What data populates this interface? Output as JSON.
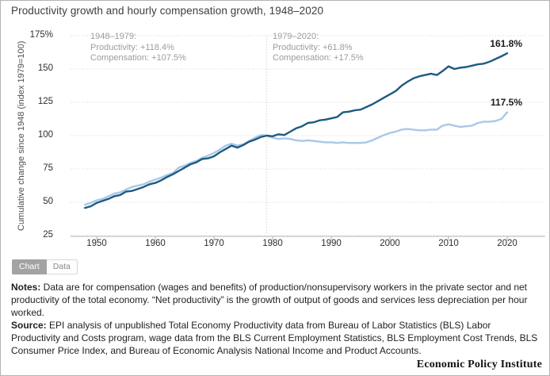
{
  "title": "Productivity growth and hourly compensation growth, 1948–2020",
  "annotations": {
    "period1": {
      "heading": "1948–1979:",
      "line1": "Productivity: +118.4%",
      "line2": "Compensation: +107.5%"
    },
    "period2": {
      "heading": "1979–2020:",
      "line1": "Productivity: +61.8%",
      "line2": "Compensation: +17.5%"
    }
  },
  "end_labels": {
    "productivity": "161.8%",
    "compensation": "117.5%"
  },
  "toggle": {
    "chart_label": "Chart",
    "data_label": "Data"
  },
  "notes": {
    "label": "Notes:",
    "text": " Data are for compensation (wages and benefits) of production/nonsupervisory workers in the private sector and net productivity of the total economy. “Net productivity” is the growth of output of goods and services less depreciation per hour worked."
  },
  "source": {
    "label": "Source:",
    "text": " EPI analysis of unpublished Total Economy Productivity data from Bureau of Labor Statistics (BLS) Labor Productivity and Costs program, wage data from the BLS Current Employment Statistics, BLS Employment Cost Trends, BLS Consumer Price Index, and Bureau of Economic Analysis National Income and Product Accounts."
  },
  "footer_brand": "Economic Policy Institute",
  "colors": {
    "productivity_line": "#1d5b7f",
    "compensation_line": "#a8c8e8",
    "grid": "#d2d2d2",
    "axis": "#b5b5b5",
    "reference_line": "#c4c4c4"
  },
  "chart_data": {
    "type": "line",
    "title": "Productivity growth and hourly compensation growth, 1948–2020",
    "xlabel": "",
    "ylabel": "Cumulative change since 1948 (index 1979=100)",
    "ylim": [
      25,
      175
    ],
    "grid": true,
    "legend_position": "none",
    "reference_line_x": 1979,
    "y_ticks": [
      175,
      150,
      125,
      100,
      75,
      50,
      25
    ],
    "y_tick_labels": [
      "175%",
      "150",
      "125",
      "100",
      "75",
      "50",
      "25"
    ],
    "x_ticks": [
      1950,
      1960,
      1970,
      1980,
      1990,
      2000,
      2010,
      2020
    ],
    "x": [
      1948,
      1949,
      1950,
      1951,
      1952,
      1953,
      1954,
      1955,
      1956,
      1957,
      1958,
      1959,
      1960,
      1961,
      1962,
      1963,
      1964,
      1965,
      1966,
      1967,
      1968,
      1969,
      1970,
      1971,
      1972,
      1973,
      1974,
      1975,
      1976,
      1977,
      1978,
      1979,
      1980,
      1981,
      1982,
      1983,
      1984,
      1985,
      1986,
      1987,
      1988,
      1989,
      1990,
      1991,
      1992,
      1993,
      1994,
      1995,
      1996,
      1997,
      1998,
      1999,
      2000,
      2001,
      2002,
      2003,
      2004,
      2005,
      2006,
      2007,
      2008,
      2009,
      2010,
      2011,
      2012,
      2013,
      2014,
      2015,
      2016,
      2017,
      2018,
      2019,
      2020
    ],
    "series": [
      {
        "name": "Productivity",
        "color": "#1d5b7f",
        "end_label": "161.8%",
        "values": [
          45.8,
          47.0,
          49.5,
          51.0,
          52.5,
          54.5,
          55.5,
          58.0,
          58.5,
          60.0,
          61.5,
          63.5,
          64.5,
          66.5,
          69.0,
          71.0,
          73.5,
          76.0,
          78.5,
          80.0,
          82.5,
          83.0,
          84.5,
          87.5,
          90.0,
          92.5,
          91.0,
          93.0,
          95.5,
          97.0,
          99.0,
          100.0,
          99.5,
          101.0,
          100.5,
          103.0,
          105.5,
          107.0,
          109.5,
          110.0,
          111.5,
          112.0,
          113.0,
          114.0,
          117.5,
          118.0,
          119.0,
          119.5,
          121.5,
          123.5,
          126.0,
          128.5,
          131.0,
          133.5,
          137.5,
          140.5,
          143.0,
          144.5,
          145.5,
          146.5,
          145.5,
          148.5,
          152.0,
          150.0,
          151.0,
          151.5,
          152.5,
          153.5,
          154.0,
          155.5,
          157.5,
          159.5,
          161.8
        ]
      },
      {
        "name": "Compensation",
        "color": "#a8c8e8",
        "end_label": "117.5%",
        "values": [
          48.2,
          49.5,
          51.5,
          52.5,
          54.5,
          56.5,
          57.5,
          59.5,
          61.5,
          62.5,
          63.5,
          65.5,
          67.0,
          68.5,
          70.5,
          72.0,
          76.0,
          77.5,
          79.5,
          81.0,
          83.5,
          85.0,
          87.0,
          89.5,
          92.5,
          94.0,
          92.5,
          93.5,
          96.0,
          98.5,
          100.5,
          100.0,
          98.5,
          97.5,
          98.0,
          97.5,
          96.5,
          96.0,
          96.5,
          96.0,
          95.5,
          95.0,
          95.0,
          94.5,
          95.0,
          94.5,
          94.5,
          94.5,
          95.0,
          96.5,
          98.5,
          100.5,
          102.0,
          103.0,
          104.5,
          105.0,
          104.5,
          104.0,
          104.0,
          104.5,
          104.5,
          107.5,
          108.5,
          107.5,
          106.5,
          107.0,
          107.5,
          109.5,
          110.5,
          110.5,
          111.0,
          112.5,
          117.5
        ]
      }
    ]
  }
}
